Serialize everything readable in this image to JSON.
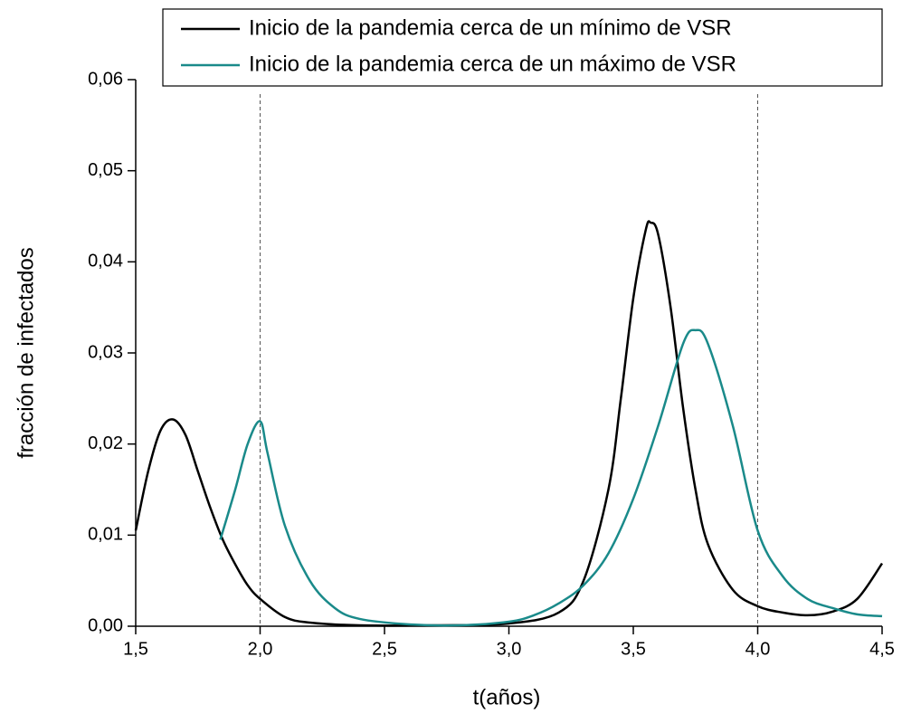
{
  "chart_data": {
    "type": "line",
    "x_label": "t(años)",
    "y_label": "fracción de infectados",
    "xlim": [
      1.5,
      4.5
    ],
    "ylim": [
      0,
      0.06
    ],
    "xticks": [
      {
        "value": 1.5,
        "label": "1,5"
      },
      {
        "value": 2.0,
        "label": "2,0"
      },
      {
        "value": 2.5,
        "label": "2,5"
      },
      {
        "value": 3.0,
        "label": "3,0"
      },
      {
        "value": 3.5,
        "label": "3,5"
      },
      {
        "value": 4.0,
        "label": "4,0"
      },
      {
        "value": 4.5,
        "label": "4,5"
      }
    ],
    "yticks": [
      {
        "value": 0,
        "label": "0,00"
      },
      {
        "value": 0.01,
        "label": "0,01"
      },
      {
        "value": 0.02,
        "label": "0,02"
      },
      {
        "value": 0.03,
        "label": "0,03"
      },
      {
        "value": 0.04,
        "label": "0,04"
      },
      {
        "value": 0.05,
        "label": "0,05"
      },
      {
        "value": 0.06,
        "label": "0,06"
      }
    ],
    "vlines": [
      2.0,
      4.0
    ],
    "legend_position": "top-right",
    "series": [
      {
        "name": "Inicio de la pandemia cerca de un mínimo de VSR",
        "color": "#000000",
        "x": [
          1.5,
          1.55,
          1.6,
          1.65,
          1.7,
          1.75,
          1.8,
          1.85,
          1.9,
          1.95,
          2.0,
          2.1,
          2.2,
          2.4,
          2.7,
          3.0,
          3.2,
          3.3,
          3.4,
          3.45,
          3.5,
          3.55,
          3.57,
          3.6,
          3.65,
          3.7,
          3.75,
          3.8,
          3.9,
          4.0,
          4.1,
          4.2,
          4.3,
          4.4,
          4.5
        ],
        "values": [
          0.0105,
          0.017,
          0.0215,
          0.0227,
          0.021,
          0.017,
          0.013,
          0.0095,
          0.0068,
          0.0045,
          0.003,
          0.001,
          0.0004,
          0.0001,
          0.0001,
          0.0003,
          0.0015,
          0.005,
          0.015,
          0.025,
          0.036,
          0.0435,
          0.0443,
          0.043,
          0.035,
          0.024,
          0.015,
          0.009,
          0.004,
          0.0022,
          0.0015,
          0.0012,
          0.0016,
          0.003,
          0.0069
        ]
      },
      {
        "name": "Inicio de la pandemia cerca de un máximo de VSR",
        "color": "#1a8a8a",
        "x": [
          1.84,
          1.9,
          1.95,
          2.0,
          2.03,
          2.1,
          2.2,
          2.3,
          2.4,
          2.6,
          2.8,
          3.0,
          3.1,
          3.2,
          3.3,
          3.4,
          3.5,
          3.6,
          3.7,
          3.75,
          3.8,
          3.9,
          4.0,
          4.1,
          4.2,
          4.3,
          4.4,
          4.5
        ],
        "values": [
          0.0095,
          0.015,
          0.02,
          0.0225,
          0.019,
          0.011,
          0.005,
          0.002,
          0.0008,
          0.0002,
          0.0001,
          0.0005,
          0.0012,
          0.0025,
          0.0045,
          0.008,
          0.014,
          0.022,
          0.031,
          0.0325,
          0.031,
          0.022,
          0.0105,
          0.0055,
          0.003,
          0.002,
          0.0013,
          0.0011
        ]
      }
    ]
  }
}
